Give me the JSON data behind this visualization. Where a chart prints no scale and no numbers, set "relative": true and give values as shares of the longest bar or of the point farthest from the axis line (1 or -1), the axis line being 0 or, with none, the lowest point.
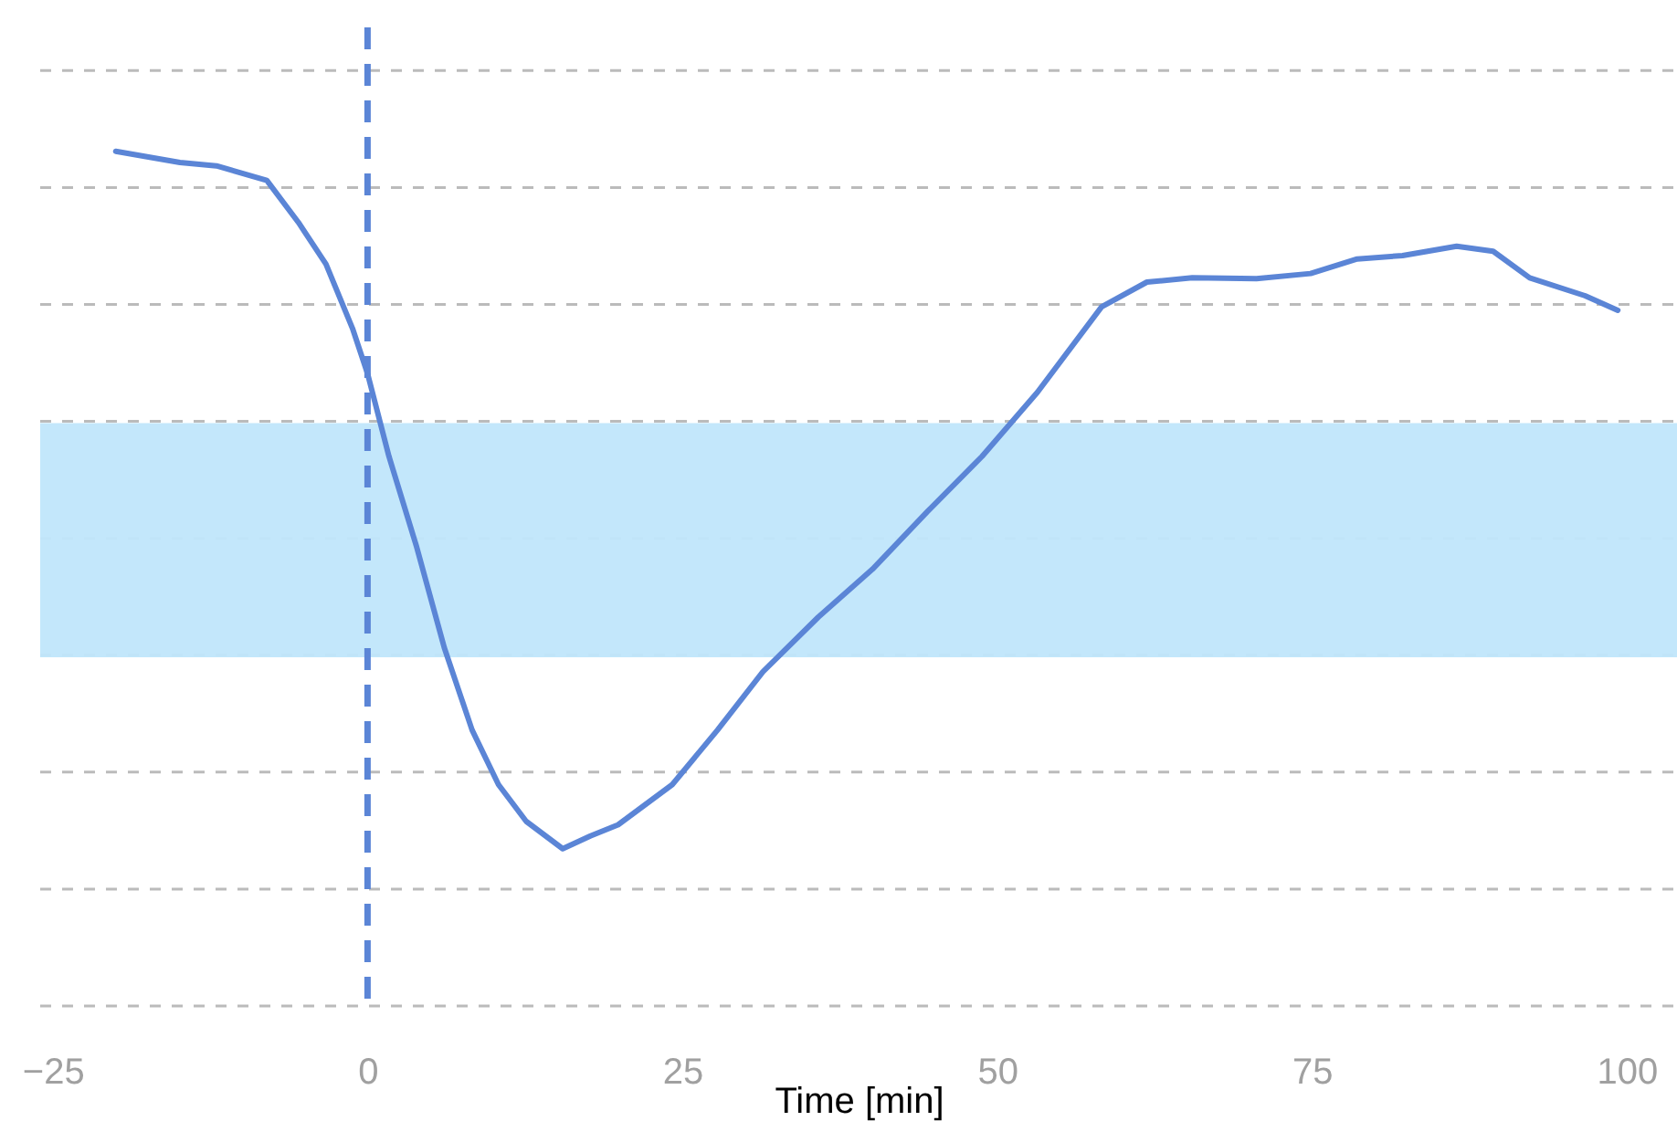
{
  "chart_data": {
    "type": "line",
    "relative": true,
    "xlabel": "Time [min]",
    "xlim": [
      -26,
      104
    ],
    "xticks": [
      -25,
      0,
      25,
      50,
      75,
      100
    ],
    "grid": "y",
    "line_style": "solid",
    "marker": "none",
    "ref_lines": [
      {
        "axis": "x",
        "value": 0,
        "color": "#5b85d6",
        "line_style": "dashed"
      }
    ],
    "bands": [
      {
        "axis": "y",
        "from": 0.408,
        "to": 0.682,
        "color": "#c0e6fb"
      }
    ],
    "series": [
      {
        "color": "#5b85d6",
        "x": [
          -20,
          -14.9,
          -12,
          -8,
          -5.5,
          -3.3,
          -1.2,
          0,
          1.7,
          3.9,
          6.1,
          8.3,
          10.4,
          12.6,
          15.5,
          17.7,
          19.9,
          24.2,
          27.8,
          31.4,
          35.8,
          40.1,
          44.5,
          48.8,
          53.2,
          58.3,
          61.9,
          65.5,
          70.6,
          74.9,
          78.6,
          82.2,
          86.5,
          89.4,
          92.3,
          96.7,
          99.3
        ],
        "values": [
          1,
          0.987,
          0.983,
          0.966,
          0.917,
          0.868,
          0.793,
          0.74,
          0.643,
          0.537,
          0.419,
          0.323,
          0.259,
          0.216,
          0.184,
          0.199,
          0.212,
          0.259,
          0.323,
          0.391,
          0.455,
          0.511,
          0.579,
          0.643,
          0.718,
          0.818,
          0.847,
          0.852,
          0.851,
          0.857,
          0.874,
          0.878,
          0.889,
          0.883,
          0.852,
          0.831,
          0.814
        ]
      }
    ]
  }
}
